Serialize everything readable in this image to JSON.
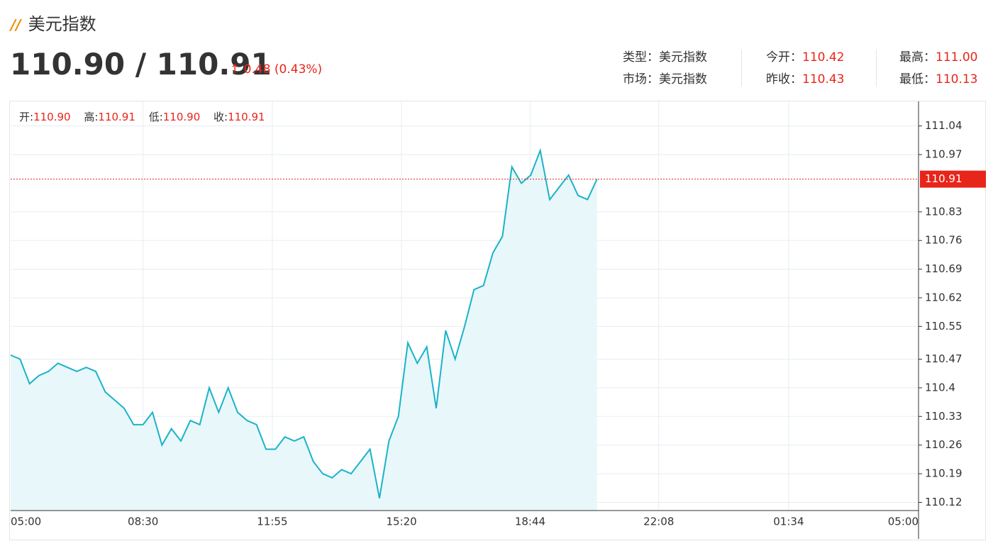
{
  "header": {
    "title": "美元指数",
    "price": "110.90 / 110.91",
    "change": "0.48 (0.43%)"
  },
  "info": [
    {
      "label": "类型：",
      "value": "美元指数"
    },
    {
      "label": "今开：",
      "value": "110.42"
    },
    {
      "label": "最高：",
      "value": "111.00"
    },
    {
      "label": "市场：",
      "value": "美元指数"
    },
    {
      "label": "昨收：",
      "value": "110.43"
    },
    {
      "label": "最低：",
      "value": "110.13"
    }
  ],
  "ohlc": [
    {
      "label": "开:",
      "value": "110.90"
    },
    {
      "label": "高:",
      "value": "110.91"
    },
    {
      "label": "低:",
      "value": "110.90"
    },
    {
      "label": "收:",
      "value": "110.91"
    }
  ],
  "chart_data": {
    "type": "line",
    "x": [
      "05:00",
      "05:15",
      "05:30",
      "05:45",
      "06:00",
      "06:15",
      "06:30",
      "06:45",
      "07:00",
      "07:15",
      "07:30",
      "07:45",
      "08:00",
      "08:15",
      "08:30",
      "08:45",
      "09:00",
      "09:15",
      "09:30",
      "09:45",
      "10:00",
      "10:15",
      "10:30",
      "10:45",
      "11:00",
      "11:15",
      "11:30",
      "11:45",
      "12:00",
      "12:15",
      "12:30",
      "12:45",
      "13:00",
      "13:15",
      "13:30",
      "13:45",
      "14:00",
      "14:15",
      "14:30",
      "14:45",
      "15:00",
      "15:15",
      "15:30",
      "15:45",
      "16:00",
      "16:15",
      "16:30",
      "16:45",
      "17:00",
      "17:15",
      "17:30",
      "17:45",
      "18:00",
      "18:15",
      "18:30",
      "18:45",
      "19:00",
      "19:15",
      "19:30",
      "19:45",
      "20:00",
      "20:15",
      "20:30"
    ],
    "series": [
      {
        "color": "#1ab3c9",
        "values": [
          110.48,
          110.47,
          110.41,
          110.43,
          110.44,
          110.46,
          110.45,
          110.44,
          110.45,
          110.44,
          110.39,
          110.37,
          110.35,
          110.31,
          110.31,
          110.34,
          110.26,
          110.3,
          110.27,
          110.32,
          110.31,
          110.4,
          110.34,
          110.4,
          110.34,
          110.32,
          110.31,
          110.25,
          110.25,
          110.28,
          110.27,
          110.28,
          110.22,
          110.19,
          110.18,
          110.2,
          110.19,
          110.22,
          110.25,
          110.13,
          110.27,
          110.33,
          110.51,
          110.46,
          110.5,
          110.35,
          110.54,
          110.47,
          110.55,
          110.64,
          110.65,
          110.73,
          110.77,
          110.94,
          110.9,
          110.92,
          110.98,
          110.86,
          110.89,
          110.92,
          110.87,
          110.86,
          110.91
        ]
      }
    ],
    "area_color": "#e8f7fa",
    "current": 110.91,
    "current_color": "#e8251a",
    "ylim": [
      110.1,
      111.1
    ],
    "yticks": [
      111.04,
      110.97,
      110.83,
      110.76,
      110.69,
      110.62,
      110.55,
      110.47,
      110.4,
      110.33,
      110.26,
      110.19,
      110.12
    ],
    "xticks": [
      "05:00",
      "08:30",
      "11:55",
      "15:20",
      "18:44",
      "22:08",
      "01:34",
      "05:00"
    ],
    "grid": true
  }
}
